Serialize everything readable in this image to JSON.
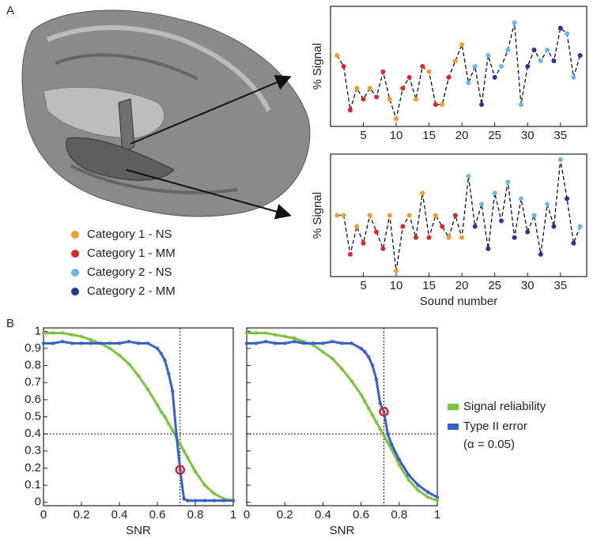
{
  "panel_labels": [
    "A",
    "B"
  ],
  "chart_data": [
    {
      "type": "line",
      "ylabel": "% Signal",
      "xlim": [
        0,
        39
      ],
      "ylim": [
        -0.5,
        10.5
      ],
      "xticks": [
        5,
        10,
        15,
        20,
        25,
        30,
        35
      ],
      "legend": [
        {
          "name": "Category 1 - NS",
          "color": "#e8a030"
        },
        {
          "name": "Category 1 - MM",
          "color": "#d42a2a"
        },
        {
          "name": "Category 2 - NS",
          "color": "#6ab8e8"
        },
        {
          "name": "Category 2 - MM",
          "color": "#2c3590"
        }
      ],
      "x": [
        1,
        2,
        3,
        4,
        5,
        6,
        7,
        8,
        9,
        10,
        11,
        12,
        13,
        14,
        15,
        16,
        17,
        18,
        19,
        20,
        21,
        22,
        23,
        24,
        25,
        26,
        27,
        28,
        29,
        30,
        31,
        32,
        33,
        34,
        35,
        36,
        37,
        38
      ],
      "values": [
        6,
        5,
        1,
        3,
        2,
        3,
        2.2,
        4.5,
        2,
        0.2,
        3,
        4,
        2,
        5,
        4.5,
        1.5,
        1.5,
        4,
        5.5,
        7,
        3.5,
        5,
        1.5,
        6,
        4,
        5,
        6.5,
        9,
        1.5,
        5,
        6.5,
        5.5,
        6.5,
        5.5,
        8.5,
        8,
        4,
        6
      ],
      "point_colors": [
        "#e8a030",
        "#d42a2a",
        "#d42a2a",
        "#e8a030",
        "#d42a2a",
        "#e8a030",
        "#d42a2a",
        "#d42a2a",
        "#e8a030",
        "#e8a030",
        "#d42a2a",
        "#d42a2a",
        "#e8a030",
        "#d42a2a",
        "#e8a030",
        "#d42a2a",
        "#e8a030",
        "#d42a2a",
        "#e8a030",
        "#e8a030",
        "#6ab8e8",
        "#6ab8e8",
        "#2c3590",
        "#6ab8e8",
        "#2c3590",
        "#6ab8e8",
        "#6ab8e8",
        "#6ab8e8",
        "#6ab8e8",
        "#2c3590",
        "#2c3590",
        "#6ab8e8",
        "#6ab8e8",
        "#2c3590",
        "#2c3590",
        "#6ab8e8",
        "#6ab8e8",
        "#2c3590"
      ]
    },
    {
      "type": "line",
      "ylabel": "% Signal",
      "xlabel": "Sound number",
      "xlim": [
        0,
        39
      ],
      "ylim": [
        -0.5,
        10.5
      ],
      "xticks": [
        5,
        10,
        15,
        20,
        25,
        30,
        35
      ],
      "x": [
        1,
        2,
        3,
        4,
        5,
        6,
        7,
        8,
        9,
        10,
        11,
        12,
        13,
        14,
        15,
        16,
        17,
        18,
        19,
        20,
        21,
        22,
        23,
        24,
        25,
        26,
        27,
        28,
        29,
        30,
        31,
        32,
        33,
        34,
        35,
        36,
        37,
        38
      ],
      "values": [
        5,
        5,
        1.5,
        4,
        2.5,
        5,
        3.5,
        2,
        5,
        0,
        4,
        5,
        3,
        7,
        3,
        5,
        4,
        3,
        5,
        3,
        8.5,
        4,
        6,
        2,
        7,
        4.5,
        8,
        3,
        6.5,
        3.5,
        5,
        1.5,
        6,
        4,
        10,
        6.5,
        2.5,
        4
      ],
      "point_colors": [
        "#e8a030",
        "#e8a030",
        "#d42a2a",
        "#e8a030",
        "#d42a2a",
        "#e8a030",
        "#d42a2a",
        "#d42a2a",
        "#e8a030",
        "#e8a030",
        "#d42a2a",
        "#e8a030",
        "#d42a2a",
        "#e8a030",
        "#d42a2a",
        "#e8a030",
        "#d42a2a",
        "#e8a030",
        "#d42a2a",
        "#e8a030",
        "#6ab8e8",
        "#2c3590",
        "#6ab8e8",
        "#2c3590",
        "#6ab8e8",
        "#2c3590",
        "#6ab8e8",
        "#2c3590",
        "#6ab8e8",
        "#2c3590",
        "#6ab8e8",
        "#2c3590",
        "#6ab8e8",
        "#2c3590",
        "#6ab8e8",
        "#2c3590",
        "#2c3590",
        "#6ab8e8"
      ]
    },
    {
      "type": "line",
      "xlabel": "SNR",
      "xlim": [
        0,
        1
      ],
      "ylim": [
        -0.02,
        1.02
      ],
      "xticks": [
        0,
        0.2,
        0.4,
        0.6,
        0.8,
        1
      ],
      "yticks": [
        0,
        0.1,
        0.2,
        0.3,
        0.4,
        0.5,
        0.6,
        0.7,
        0.8,
        0.9,
        1
      ],
      "vlines": [
        0.72
      ],
      "hlines": [
        0.4
      ],
      "highlight": {
        "x": 0.72,
        "y": 0.19
      },
      "x": [
        0,
        0.05,
        0.1,
        0.15,
        0.2,
        0.25,
        0.3,
        0.35,
        0.4,
        0.45,
        0.5,
        0.55,
        0.6,
        0.62,
        0.64,
        0.66,
        0.68,
        0.7,
        0.72,
        0.74,
        0.76,
        0.8,
        0.85,
        0.9,
        0.95,
        1
      ],
      "series": [
        {
          "color": "#7cc243",
          "values": [
            0.99,
            0.99,
            0.99,
            0.98,
            0.97,
            0.95,
            0.93,
            0.9,
            0.86,
            0.81,
            0.74,
            0.66,
            0.57,
            0.53,
            0.5,
            0.46,
            0.42,
            0.38,
            0.34,
            0.3,
            0.26,
            0.18,
            0.1,
            0.05,
            0.02,
            0.01
          ]
        },
        {
          "color": "#3a62c4",
          "values": [
            0.93,
            0.93,
            0.94,
            0.93,
            0.93,
            0.93,
            0.93,
            0.93,
            0.93,
            0.94,
            0.93,
            0.93,
            0.9,
            0.87,
            0.83,
            0.75,
            0.65,
            0.4,
            0.19,
            0.02,
            0.01,
            0.01,
            0.01,
            0.01,
            0.01,
            0.01
          ]
        }
      ]
    },
    {
      "type": "line",
      "xlabel": "SNR",
      "xlim": [
        0,
        1
      ],
      "ylim": [
        -0.02,
        1.02
      ],
      "xticks": [
        0,
        0.2,
        0.4,
        0.6,
        0.8,
        1
      ],
      "yticks": [
        0,
        0.1,
        0.2,
        0.3,
        0.4,
        0.5,
        0.6,
        0.7,
        0.8,
        0.9,
        1
      ],
      "ytick_labels": false,
      "vlines": [
        0.72
      ],
      "hlines": [
        0.4
      ],
      "highlight": {
        "x": 0.72,
        "y": 0.53
      },
      "legend_note": "(α = 0.05)",
      "x": [
        0,
        0.05,
        0.1,
        0.15,
        0.2,
        0.25,
        0.3,
        0.35,
        0.4,
        0.45,
        0.5,
        0.55,
        0.6,
        0.62,
        0.64,
        0.66,
        0.68,
        0.7,
        0.72,
        0.74,
        0.76,
        0.8,
        0.85,
        0.9,
        0.95,
        1
      ],
      "series": [
        {
          "name": "Signal reliability",
          "color": "#7cc243",
          "values": [
            0.99,
            0.99,
            0.99,
            0.98,
            0.97,
            0.96,
            0.94,
            0.92,
            0.88,
            0.84,
            0.78,
            0.71,
            0.63,
            0.59,
            0.55,
            0.51,
            0.47,
            0.43,
            0.39,
            0.35,
            0.31,
            0.22,
            0.13,
            0.07,
            0.03,
            0.01
          ]
        },
        {
          "name": "Type II error",
          "color": "#3a62c4",
          "values": [
            0.93,
            0.93,
            0.94,
            0.93,
            0.93,
            0.94,
            0.93,
            0.93,
            0.93,
            0.94,
            0.93,
            0.93,
            0.9,
            0.88,
            0.85,
            0.8,
            0.72,
            0.58,
            0.53,
            0.4,
            0.34,
            0.25,
            0.16,
            0.1,
            0.06,
            0.03
          ]
        }
      ]
    }
  ]
}
